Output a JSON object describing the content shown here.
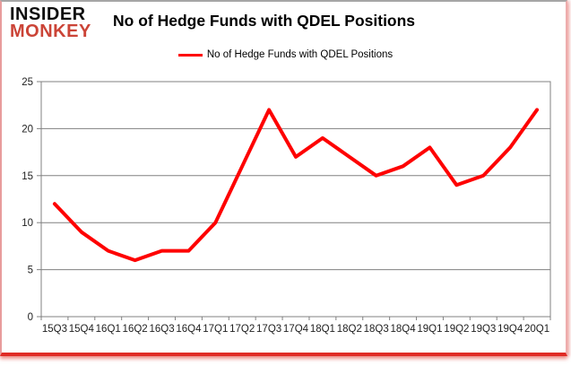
{
  "branding": {
    "logo_line1": "INSIDER",
    "logo_line2": "MONKEY"
  },
  "header": {
    "title": "No of Hedge Funds with QDEL Positions"
  },
  "legend": {
    "label": "No of Hedge Funds with QDEL Positions",
    "line_color": "#fe0000"
  },
  "colors": {
    "series_red": "#fe0000",
    "logo_red": "#cb4437",
    "grid": "#808080",
    "axis_text": "#1f1f1f",
    "frame_pink": "#eeadad",
    "frame_bottom_red": "#e02b25",
    "frame_top_gray": "#a6a6a6"
  },
  "chart_data": {
    "type": "line",
    "title": "No of Hedge Funds with QDEL Positions",
    "categories": [
      "15Q3",
      "15Q4",
      "16Q1",
      "16Q2",
      "16Q3",
      "16Q4",
      "17Q1",
      "17Q2",
      "17Q3",
      "17Q4",
      "18Q1",
      "18Q2",
      "18Q3",
      "18Q4",
      "19Q1",
      "19Q2",
      "19Q3",
      "19Q4",
      "20Q1"
    ],
    "series": [
      {
        "name": "No of Hedge Funds with QDEL Positions",
        "color": "#fe0000",
        "values": [
          12,
          9,
          7,
          6,
          7,
          7,
          10,
          16,
          22,
          17,
          19,
          17,
          15,
          16,
          18,
          14,
          15,
          18,
          22
        ]
      }
    ],
    "xlabel": "",
    "ylabel": "",
    "ylim": [
      0,
      25
    ],
    "yticks": [
      0,
      5,
      10,
      15,
      20,
      25
    ],
    "grid": true,
    "legend_position": "top"
  }
}
